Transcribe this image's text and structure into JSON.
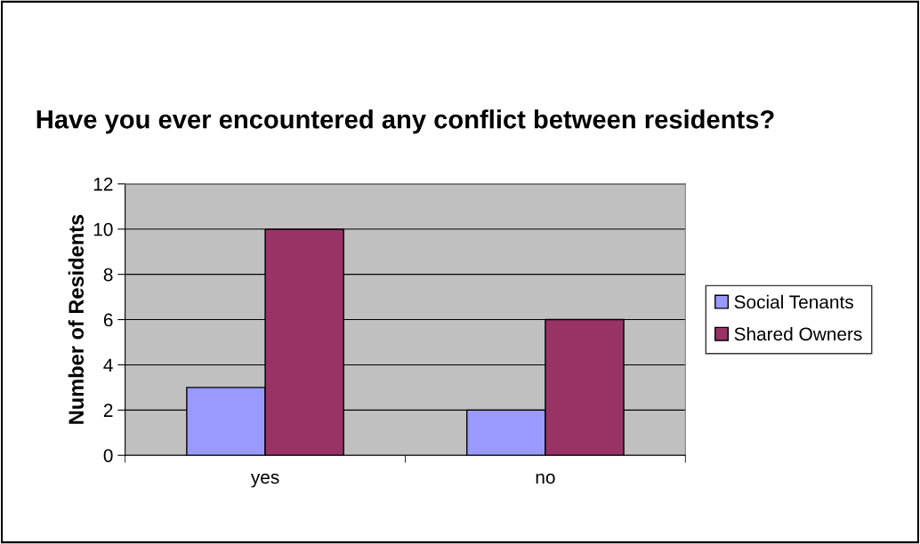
{
  "chart_data": {
    "type": "bar",
    "title": "Have you ever encountered any conflict between residents?",
    "ylabel": "Number of Residents",
    "categories": [
      "yes",
      "no"
    ],
    "series": [
      {
        "name": "Social Tenants",
        "color": "#9999ff",
        "values": [
          3,
          2
        ]
      },
      {
        "name": "Shared Owners",
        "color": "#993366",
        "values": [
          10,
          6
        ]
      }
    ],
    "ylim": [
      0,
      12
    ],
    "yticks": [
      0,
      2,
      4,
      6,
      8,
      10,
      12
    ],
    "grid": "y",
    "legend": "right"
  }
}
